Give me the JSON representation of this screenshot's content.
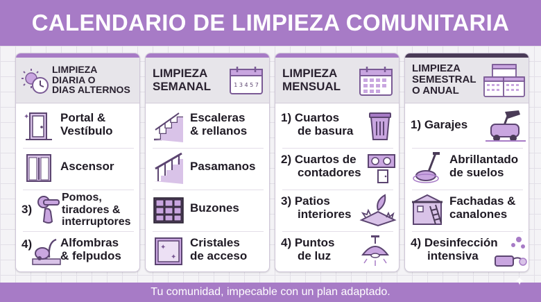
{
  "title": "CALENDARIO DE LIMPIEZA COMUNITARIA",
  "footer": "Tu comunidad, impecable con un plan adaptado.",
  "colors": {
    "accent": "#a77bc6",
    "accent_dark": "#4a3b57",
    "header_bg": "#e7e5ea",
    "text": "#1f1a24"
  },
  "columns": [
    {
      "header": [
        "LIMPIEZA",
        "DIARIA O",
        "DIAS ALTERNOS"
      ],
      "header_icon": "sun-clock-icon",
      "items": [
        {
          "label": [
            "Portal &",
            "Vestíbulo"
          ],
          "icon": "door-icon"
        },
        {
          "label": [
            "Ascensor"
          ],
          "icon": "elevator-icon"
        },
        {
          "number": "3)",
          "label": [
            "Pomos,",
            "tiradores &",
            "interruptores"
          ],
          "icon": "door-handle-icon"
        },
        {
          "number": "4)",
          "label": [
            "Alfombras",
            "& felpudos"
          ],
          "icon": "vacuum-icon"
        }
      ]
    },
    {
      "header": [
        "LIMPIEZA",
        "SEMANAL"
      ],
      "header_icon": "calendar-week-icon",
      "calendar_digits": "1 3 4 5 7",
      "items": [
        {
          "label": [
            "Escaleras",
            "& rellanos"
          ],
          "icon": "stairs-icon"
        },
        {
          "label": [
            "Pasamanos"
          ],
          "icon": "handrail-icon"
        },
        {
          "label": [
            "Buzones"
          ],
          "icon": "mailboxes-icon"
        },
        {
          "label": [
            "Cristales",
            "de acceso"
          ],
          "icon": "glass-window-icon"
        }
      ]
    },
    {
      "header": [
        "LIMPIEZA",
        "MENSUAL"
      ],
      "header_icon": "calendar-month-icon",
      "items": [
        {
          "label": [
            "1) Cuartos",
            "de basura"
          ],
          "icon": "trash-bin-icon"
        },
        {
          "label": [
            "2) Cuartos de",
            "contadores"
          ],
          "icon": "meters-icon"
        },
        {
          "label": [
            "3) Patios",
            "interiores"
          ],
          "icon": "patio-plants-icon"
        },
        {
          "label": [
            "4) Puntos",
            "de luz"
          ],
          "icon": "ceiling-lamp-icon"
        }
      ]
    },
    {
      "header": [
        "LIMPIEZA",
        "SEMESTRAL",
        "O ANUAL"
      ],
      "header_icon": "calendars-icon",
      "items": [
        {
          "label": [
            "1) Garajes"
          ],
          "icon": "floor-scrubber-icon"
        },
        {
          "label": [
            "Abrillantado",
            "de suelos"
          ],
          "icon": "floor-polisher-icon"
        },
        {
          "label": [
            "Fachadas &",
            "canalones"
          ],
          "icon": "facade-ladder-icon"
        },
        {
          "label": [
            "4) Desinfección",
            "intensiva"
          ],
          "icon": "disinfection-icon"
        }
      ]
    }
  ]
}
